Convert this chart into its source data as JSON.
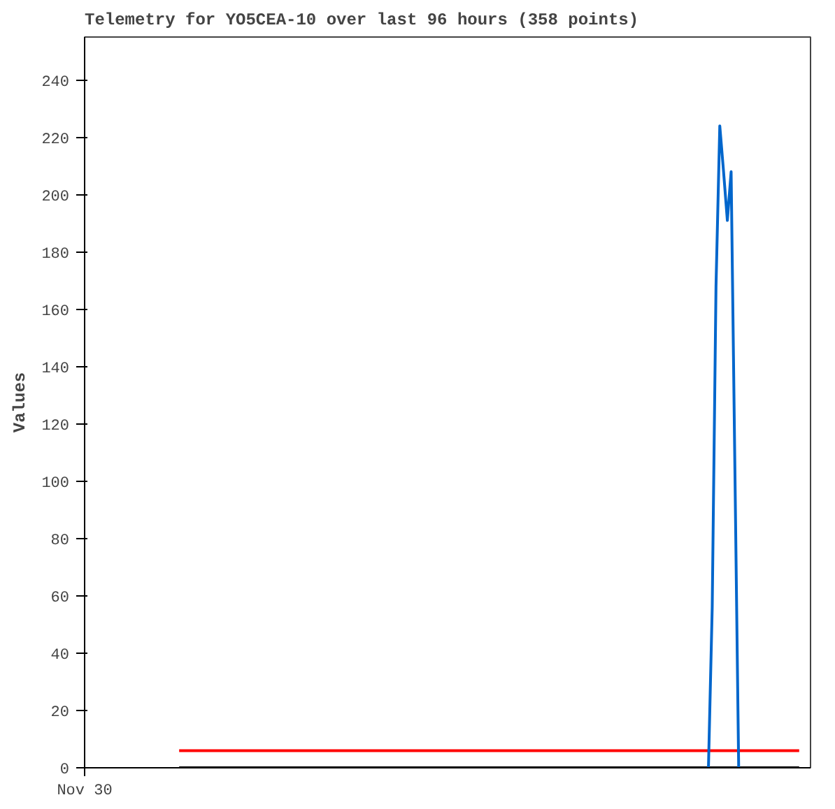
{
  "chart_data": {
    "type": "line",
    "title": "Telemetry for YO5CEA-10 over last 96 hours (358 points)",
    "ylabel": "Values",
    "categories": [
      "Nov 30",
      null,
      null,
      null,
      null,
      null,
      null,
      null,
      null,
      null,
      null,
      null,
      null,
      null,
      null,
      null,
      null,
      null,
      null,
      null,
      null,
      null,
      null,
      null,
      null,
      null,
      null,
      null,
      null,
      null,
      null,
      null,
      null,
      null,
      null,
      null,
      null,
      null,
      null,
      null,
      null,
      null,
      null,
      null,
      null,
      null,
      null,
      null,
      null,
      null,
      null,
      null,
      null,
      null,
      null,
      null,
      null,
      null,
      null,
      null,
      null,
      null,
      null,
      null,
      null,
      null,
      null,
      null,
      null,
      null,
      null,
      null,
      null,
      null,
      null,
      null,
      null,
      null,
      null,
      null,
      null,
      null,
      null,
      null,
      null,
      null,
      null,
      null,
      null,
      null,
      null,
      null,
      null,
      null,
      null,
      null,
      null,
      null,
      null,
      null,
      null,
      null,
      null,
      null,
      null,
      null,
      null,
      null,
      null,
      null,
      null,
      null,
      null,
      null,
      null,
      null,
      null,
      null,
      null,
      null,
      null,
      null,
      null,
      null,
      null,
      null,
      null,
      null,
      null,
      null,
      null,
      null,
      null,
      null,
      null,
      null,
      null,
      null,
      null,
      null,
      null,
      null,
      null,
      null,
      null,
      null,
      null,
      null,
      null,
      null,
      null,
      null,
      null,
      null,
      null,
      null,
      null,
      null,
      null,
      null,
      null,
      null,
      null,
      null,
      null,
      null,
      null,
      null,
      null,
      null,
      null,
      null,
      null,
      null,
      null,
      null,
      null,
      null,
      null,
      null,
      null,
      null,
      null,
      null,
      null,
      null,
      null,
      null,
      null,
      null,
      null,
      null,
      null
    ],
    "ylim": [
      0,
      255
    ],
    "yticks": [
      0,
      20,
      40,
      60,
      80,
      100,
      120,
      140,
      160,
      180,
      200,
      220,
      240
    ],
    "line_style": "solid",
    "series": [
      {
        "color": "#000000",
        "values": [
          null,
          null,
          null,
          null,
          null,
          null,
          null,
          null,
          null,
          null,
          null,
          null,
          null,
          null,
          null,
          null,
          null,
          null,
          null,
          null,
          null,
          null,
          null,
          null,
          null,
          0,
          0,
          0,
          0,
          0,
          0,
          0,
          0,
          0,
          0,
          0,
          0,
          0,
          0,
          0,
          0,
          0,
          0,
          0,
          0,
          0,
          0,
          0,
          0,
          0,
          0,
          0,
          0,
          0,
          0,
          0,
          0,
          0,
          0,
          0,
          0,
          0,
          0,
          0,
          0,
          0,
          0,
          0,
          0,
          0,
          0,
          0,
          0,
          0,
          0,
          0,
          0,
          0,
          0,
          0,
          0,
          0,
          0,
          0,
          0,
          0,
          0,
          0,
          0,
          0,
          0,
          0,
          0,
          0,
          0,
          0,
          0,
          0,
          0,
          0,
          0,
          0,
          0,
          0,
          0,
          0,
          0,
          0,
          0,
          0,
          0,
          0,
          0,
          0,
          0,
          0,
          0,
          0,
          0,
          0,
          0,
          0,
          0,
          0,
          0,
          0,
          0,
          0,
          0,
          0,
          0,
          0,
          0,
          0,
          0,
          0,
          0,
          0,
          0,
          0,
          0,
          0,
          0,
          0,
          0,
          0,
          0,
          0,
          0,
          0,
          0,
          0,
          0,
          0,
          0,
          0,
          0,
          0,
          0,
          0,
          0,
          0,
          0,
          0,
          0,
          0,
          0,
          0,
          0,
          0,
          0,
          0,
          0,
          0,
          0,
          0,
          0,
          0,
          0,
          0,
          0,
          0,
          0,
          0,
          0,
          0,
          0,
          0,
          0,
          0,
          null,
          null,
          null
        ]
      },
      {
        "color": "#ff0000",
        "values": [
          null,
          null,
          null,
          null,
          null,
          null,
          null,
          null,
          null,
          null,
          null,
          null,
          null,
          null,
          null,
          null,
          null,
          null,
          null,
          null,
          null,
          null,
          null,
          null,
          null,
          6,
          6,
          6,
          6,
          6,
          6,
          6,
          6,
          6,
          6,
          6,
          6,
          6,
          6,
          6,
          6,
          6,
          6,
          6,
          6,
          6,
          6,
          6,
          6,
          6,
          6,
          6,
          6,
          6,
          6,
          6,
          6,
          6,
          6,
          6,
          6,
          6,
          6,
          6,
          6,
          6,
          6,
          6,
          6,
          6,
          6,
          6,
          6,
          6,
          6,
          6,
          6,
          6,
          6,
          6,
          6,
          6,
          6,
          6,
          6,
          6,
          6,
          6,
          6,
          6,
          6,
          6,
          6,
          6,
          6,
          6,
          6,
          6,
          6,
          6,
          6,
          6,
          6,
          6,
          6,
          6,
          6,
          6,
          6,
          6,
          6,
          6,
          6,
          6,
          6,
          6,
          6,
          6,
          6,
          6,
          6,
          6,
          6,
          6,
          6,
          6,
          6,
          6,
          6,
          6,
          6,
          6,
          6,
          6,
          6,
          6,
          6,
          6,
          6,
          6,
          6,
          6,
          6,
          6,
          6,
          6,
          6,
          6,
          6,
          6,
          6,
          6,
          6,
          6,
          6,
          6,
          6,
          6,
          6,
          6,
          6,
          6,
          6,
          6,
          6,
          6,
          6,
          6,
          6,
          6,
          6,
          6,
          6,
          6,
          6,
          6,
          6,
          6,
          6,
          6,
          6,
          6,
          6,
          6,
          6,
          6,
          6,
          6,
          6,
          6,
          null,
          null,
          null
        ]
      },
      {
        "color": "#0066cc",
        "values": [
          null,
          null,
          null,
          null,
          null,
          null,
          null,
          null,
          null,
          null,
          null,
          null,
          null,
          null,
          null,
          null,
          null,
          null,
          null,
          null,
          null,
          null,
          null,
          null,
          null,
          null,
          null,
          null,
          null,
          null,
          null,
          null,
          null,
          null,
          null,
          null,
          null,
          null,
          null,
          null,
          null,
          null,
          null,
          null,
          null,
          null,
          null,
          null,
          null,
          null,
          null,
          null,
          null,
          null,
          null,
          null,
          null,
          null,
          null,
          null,
          null,
          null,
          null,
          null,
          null,
          null,
          null,
          null,
          null,
          null,
          null,
          null,
          null,
          null,
          null,
          null,
          null,
          null,
          null,
          null,
          null,
          null,
          null,
          null,
          null,
          null,
          null,
          null,
          null,
          null,
          null,
          null,
          null,
          null,
          null,
          null,
          null,
          null,
          null,
          null,
          null,
          null,
          null,
          null,
          null,
          null,
          null,
          null,
          null,
          null,
          null,
          null,
          null,
          null,
          null,
          null,
          null,
          null,
          null,
          null,
          null,
          null,
          null,
          null,
          null,
          null,
          null,
          null,
          null,
          null,
          null,
          null,
          null,
          null,
          null,
          null,
          null,
          null,
          null,
          null,
          null,
          null,
          null,
          null,
          null,
          null,
          null,
          null,
          null,
          null,
          null,
          null,
          null,
          null,
          null,
          null,
          null,
          null,
          null,
          null,
          null,
          null,
          null,
          null,
          null,
          0,
          56,
          168,
          224,
          208,
          191,
          208,
          104,
          0,
          null,
          null,
          null,
          null,
          null,
          null,
          null,
          null,
          null,
          null,
          null,
          null,
          null,
          null,
          null,
          null,
          null,
          null,
          null
        ]
      }
    ]
  }
}
